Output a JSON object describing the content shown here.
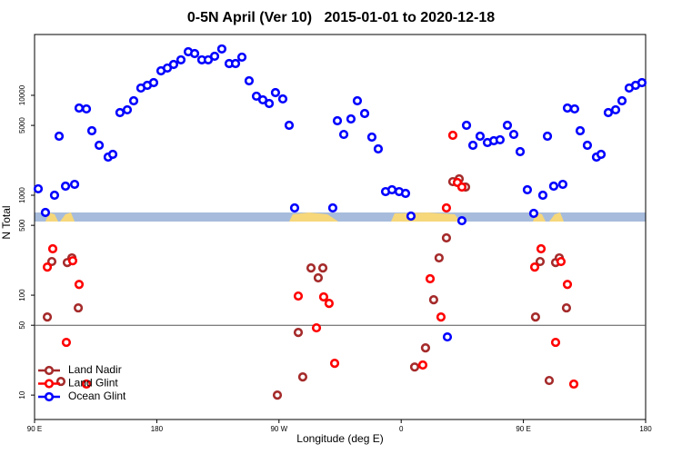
{
  "chart_data": {
    "type": "scatter",
    "title": "0-5N April (Ver 10)   2015-01-01 to 2020-12-18",
    "xlabel": "Longitude (deg E)",
    "ylabel": "N Total",
    "xlim": [
      90,
      540
    ],
    "ylim": [
      5.7,
      40600
    ],
    "log_y": true,
    "xticks": [
      {
        "value": 90,
        "label": "90 E"
      },
      180,
      {
        "value": 270,
        "label": "90 W"
      },
      {
        "value": 360,
        "label": "0"
      },
      {
        "value": 450,
        "label": "90 E"
      },
      {
        "value": 540,
        "label": "180"
      }
    ],
    "yticks": [
      10,
      50,
      100,
      500,
      1000,
      5000,
      10000
    ],
    "reference_line": 50,
    "legend": "lower left",
    "series": [
      {
        "name": "Land Nadir",
        "color": "#a52a2a",
        "x": [
          99.4,
          102.7,
          109.4,
          114.1,
          117.5,
          122.2,
          268.8,
          284.2,
          287.5,
          293.6,
          298.9,
          302.3,
          369.9,
          377.9,
          383.9,
          387.9,
          393.3,
          398.0,
          402.7,
          407.4,
          458.9,
          462.3,
          469.0,
          473.7,
          476.4,
          481.7
        ],
        "values": [
          60.5,
          217,
          13.7,
          212,
          236,
          74.6,
          10,
          42.4,
          15.2,
          187,
          149,
          187,
          19.1,
          29.7,
          90,
          236,
          374,
          1368,
          1459,
          1208,
          60.5,
          217,
          14,
          212,
          236,
          74.6
        ]
      },
      {
        "name": "Land Glint",
        "color": "#ff0000",
        "x": [
          99.4,
          103.4,
          113.4,
          118.1,
          122.8,
          128.2,
          284.2,
          297.6,
          302.9,
          306.9,
          311.0,
          375.9,
          381.3,
          389.3,
          393.3,
          398.0,
          401.4,
          404.7,
          458.3,
          463.0,
          473.7,
          477.7,
          482.4,
          487.1
        ],
        "values": [
          191,
          291,
          33.7,
          221,
          128,
          12.9,
          98,
          47.1,
          96,
          82.8,
          20.8,
          20,
          146,
          60.5,
          746,
          3980,
          1340,
          1208,
          191,
          291,
          33.7,
          217,
          128,
          12.9
        ]
      },
      {
        "name": "Ocean Glint",
        "color": "#0000ff",
        "x": [
          92.7,
          98.0,
          104.7,
          108.1,
          112.8,
          119.5,
          122.8,
          128.2,
          132.2,
          137.6,
          144.2,
          147.6,
          152.9,
          158.3,
          163.0,
          168.3,
          173.0,
          177.7,
          183.1,
          187.8,
          192.4,
          197.8,
          203.2,
          207.9,
          213.2,
          217.9,
          222.6,
          227.9,
          233.3,
          238.0,
          242.7,
          248.0,
          253.4,
          258.1,
          262.8,
          267.4,
          272.8,
          277.5,
          281.5,
          309.6,
          313.0,
          317.7,
          323.0,
          327.7,
          333.1,
          338.4,
          343.1,
          348.5,
          353.2,
          358.5,
          363.2,
          367.2,
          394.0,
          404.7,
          408.1,
          412.8,
          418.1,
          423.5,
          428.2,
          432.8,
          438.2,
          442.9,
          447.6,
          452.9,
          457.6,
          464.3,
          467.7,
          472.3,
          479.0,
          482.4,
          487.7,
          491.8,
          497.1,
          503.8,
          507.2,
          512.5,
          517.9,
          522.6,
          527.9,
          532.6,
          537.3
        ],
        "values": [
          1160,
          672,
          1000,
          3900,
          1233,
          1285,
          7460,
          7310,
          4420,
          3160,
          2410,
          2565,
          6720,
          7160,
          8810,
          11830,
          12590,
          13400,
          17590,
          18750,
          20370,
          22640,
          27300,
          26180,
          22640,
          22640,
          24600,
          29100,
          20800,
          20800,
          24100,
          13970,
          9800,
          9010,
          8280,
          10640,
          9200,
          5010,
          746,
          746,
          5560,
          4060,
          5800,
          8810,
          6580,
          3820,
          2910,
          1087,
          1135,
          1087,
          1043,
          618,
          38.2,
          556,
          5010,
          3160,
          3900,
          3370,
          3510,
          3590,
          5010,
          4060,
          2730,
          1135,
          658,
          1000,
          3900,
          1233,
          1285,
          7460,
          7310,
          4420,
          3160,
          2410,
          2565,
          6720,
          7160,
          8810,
          11830,
          12590,
          13400
        ]
      }
    ]
  }
}
